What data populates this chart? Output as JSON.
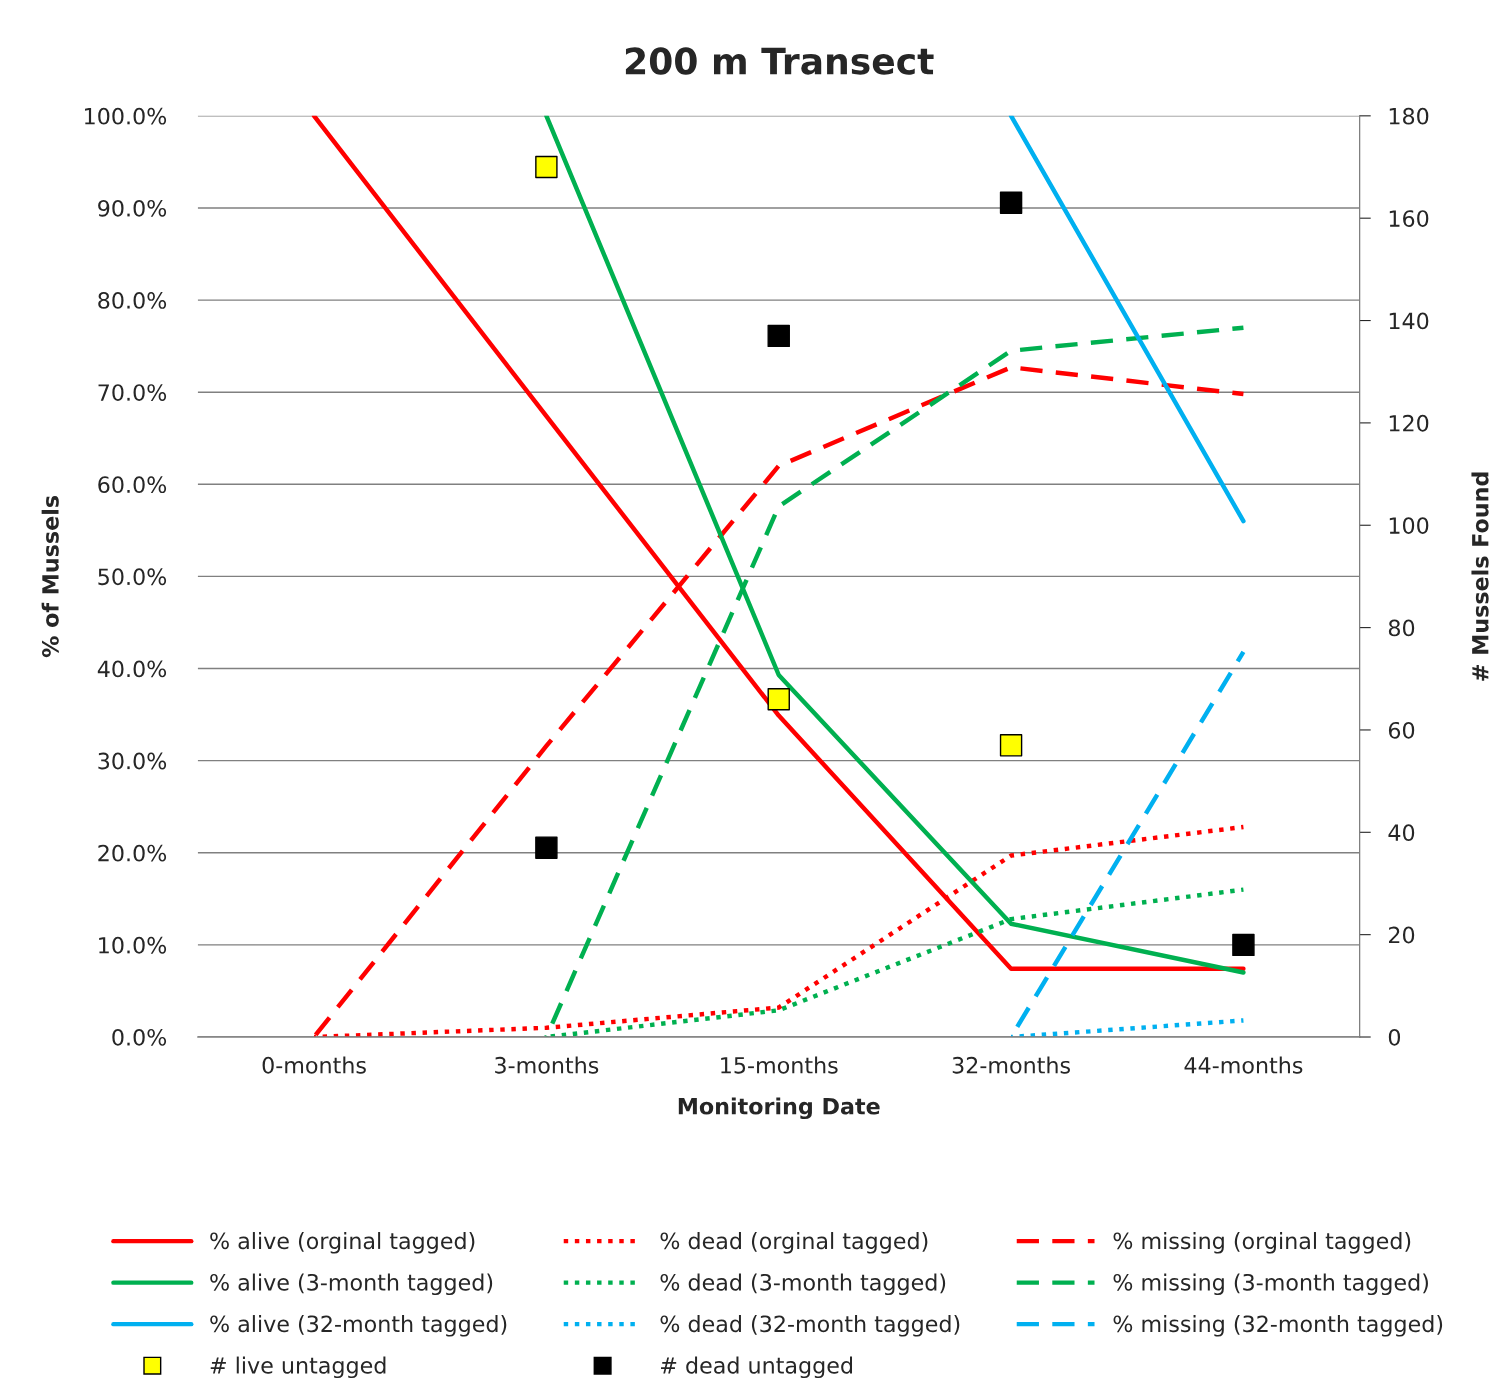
{
  "chart_data": {
    "type": "line",
    "title": "200 m Transect",
    "xlabel": "Monitoring Date",
    "ylabel": "% of Mussels",
    "y2label": "# Mussels Found",
    "categories": [
      "0-months",
      "3-months",
      "15-months",
      "32-months",
      "44-months"
    ],
    "ylim": [
      0,
      100
    ],
    "yticks": [
      {
        "value": 0,
        "label": "0.0%"
      },
      {
        "value": 10,
        "label": "10.0%"
      },
      {
        "value": 20,
        "label": "20.0%"
      },
      {
        "value": 30,
        "label": "30.0%"
      },
      {
        "value": 40,
        "label": "40.0%"
      },
      {
        "value": 50,
        "label": "50.0%"
      },
      {
        "value": 60,
        "label": "60.0%"
      },
      {
        "value": 70,
        "label": "70.0%"
      },
      {
        "value": 80,
        "label": "80.0%"
      },
      {
        "value": 90,
        "label": "90.0%"
      },
      {
        "value": 100,
        "label": "100.0%"
      }
    ],
    "y2lim": [
      0,
      180
    ],
    "y2ticks": [
      0,
      20,
      40,
      60,
      80,
      100,
      120,
      140,
      160,
      180
    ],
    "grid": "y",
    "legend": "bottom",
    "series": [
      {
        "name": "% alive (orginal tagged)",
        "color": "#ff0000",
        "line_style": "solid",
        "values": [
          100,
          67.4,
          34.9,
          7.4,
          7.4
        ]
      },
      {
        "name": "% dead (orginal tagged)",
        "color": "#ff0000",
        "line_style": "dotted",
        "values": [
          0,
          1.0,
          3.2,
          19.7,
          22.8
        ]
      },
      {
        "name": "% missing (orginal tagged)",
        "color": "#ff0000",
        "line_style": "dashed",
        "values": [
          0,
          31.6,
          62.0,
          72.7,
          69.8
        ]
      },
      {
        "name": "% alive (3-month tagged)",
        "color": "#00b050",
        "line_style": "solid",
        "values": [
          null,
          100,
          39.3,
          12.3,
          7.0
        ]
      },
      {
        "name": "% dead (3-month tagged)",
        "color": "#00b050",
        "line_style": "dotted",
        "values": [
          null,
          0,
          2.9,
          12.8,
          16.0
        ]
      },
      {
        "name": "% missing (3-month tagged)",
        "color": "#00b050",
        "line_style": "dashed",
        "values": [
          null,
          0,
          57.6,
          74.5,
          77.0
        ]
      },
      {
        "name": "% alive (32-month tagged)",
        "color": "#00b0f0",
        "line_style": "solid",
        "values": [
          null,
          null,
          null,
          100,
          56.0
        ]
      },
      {
        "name": "% dead (32-month tagged)",
        "color": "#00b0f0",
        "line_style": "dotted",
        "values": [
          null,
          null,
          null,
          0,
          1.8
        ]
      },
      {
        "name": "% missing (32-month tagged)",
        "color": "#00b0f0",
        "line_style": "dashed",
        "values": [
          null,
          null,
          null,
          0,
          41.8
        ]
      },
      {
        "name": "# live untagged",
        "type": "scatter",
        "axis": "y2",
        "marker": "square",
        "color": "#ffff00",
        "values": [
          null,
          170,
          66,
          57,
          null
        ]
      },
      {
        "name": "# dead untagged",
        "type": "scatter",
        "axis": "y2",
        "marker": "square",
        "color": "#000000",
        "values": [
          null,
          37,
          137,
          163,
          18
        ]
      }
    ]
  }
}
